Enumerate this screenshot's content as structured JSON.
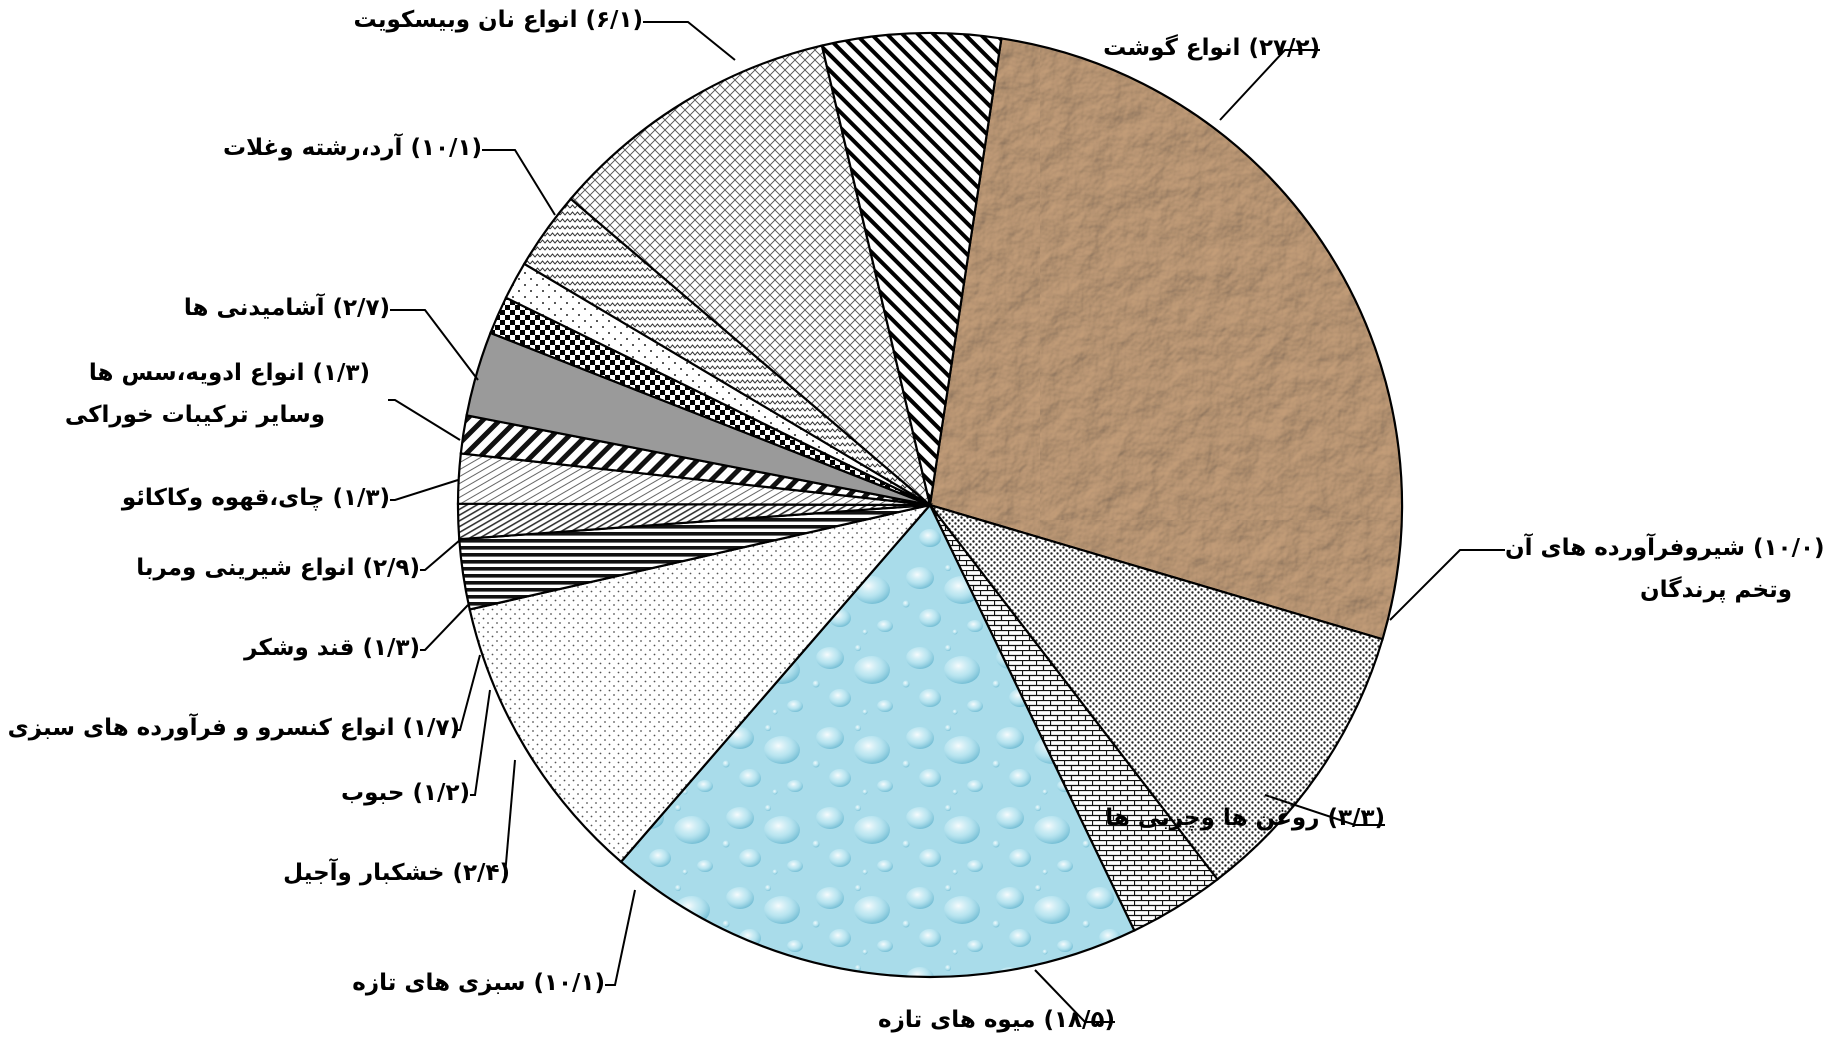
{
  "chart_data": {
    "type": "pie",
    "title": "",
    "unit": "%",
    "slices": [
      {
        "name": "انواع گوشت",
        "value": 27.2,
        "value_label": "(۲۷/۲)",
        "pattern": "crumpled-paper",
        "color": "#c09a72"
      },
      {
        "name": "شیروفرآورده های آن وتخم پرندگان",
        "value": 10.0,
        "value_label": "(۱۰/۰)",
        "pattern": "dense-dots",
        "color": "#ffffff"
      },
      {
        "name": "روغن ها وچربی ها",
        "value": 3.3,
        "value_label": "(۳/۳)",
        "pattern": "brick",
        "color": "#ffffff"
      },
      {
        "name": "میوه های تازه",
        "value": 18.5,
        "value_label": "(۱۸/۵)",
        "pattern": "water-drops",
        "color": "#a9dcea"
      },
      {
        "name": "سبزی های تازه",
        "value": 10.1,
        "value_label": "(۱۰/۱)",
        "pattern": "light-dots",
        "color": "#ffffff"
      },
      {
        "name": "خشکبار وآجیل",
        "value": 2.4,
        "value_label": "(۲/۴)",
        "pattern": "horizontal-lines",
        "color": "#ffffff"
      },
      {
        "name": "حبوب",
        "value": 1.2,
        "value_label": "(۱/۲)",
        "pattern": "dense-diagonal",
        "color": "#ffffff"
      },
      {
        "name": "انواع کنسرو و فرآورده های سبزی",
        "value": 1.7,
        "value_label": "(۱/۷)",
        "pattern": "light-diagonal",
        "color": "#ffffff"
      },
      {
        "name": "قند وشکر",
        "value": 1.3,
        "value_label": "(۱/۳)",
        "pattern": "wide-diagonal",
        "color": "#ffffff"
      },
      {
        "name": "انواع شیرینی ومربا",
        "value": 2.9,
        "value_label": "(۲/۹)",
        "pattern": "solid-gray",
        "color": "#9a9a9a"
      },
      {
        "name": "چای،قهوه وکاکائو",
        "value": 1.3,
        "value_label": "(۱/۳)",
        "pattern": "checker",
        "color": "#ffffff"
      },
      {
        "name": "انواع ادویه،سس ها وسایر ترکیبات خوراکی",
        "value": 1.3,
        "value_label": "(۱/۳)",
        "pattern": "sparse-dots",
        "color": "#ffffff"
      },
      {
        "name": "آشامیدنی ها",
        "value": 2.7,
        "value_label": "(۲/۷)",
        "pattern": "zigzag",
        "color": "#ffffff"
      },
      {
        "name": "آرد،رشته وغلات",
        "value": 10.1,
        "value_label": "(۱۰/۱)",
        "pattern": "diamond-lattice",
        "color": "#ffffff"
      },
      {
        "name": "انواع نان وبیسکویت",
        "value": 6.1,
        "value_label": "(۶/۱)",
        "pattern": "diagonal-stripes",
        "color": "#ffffff"
      }
    ],
    "legend": "none",
    "label_placement": "outside-with-leader-lines"
  }
}
